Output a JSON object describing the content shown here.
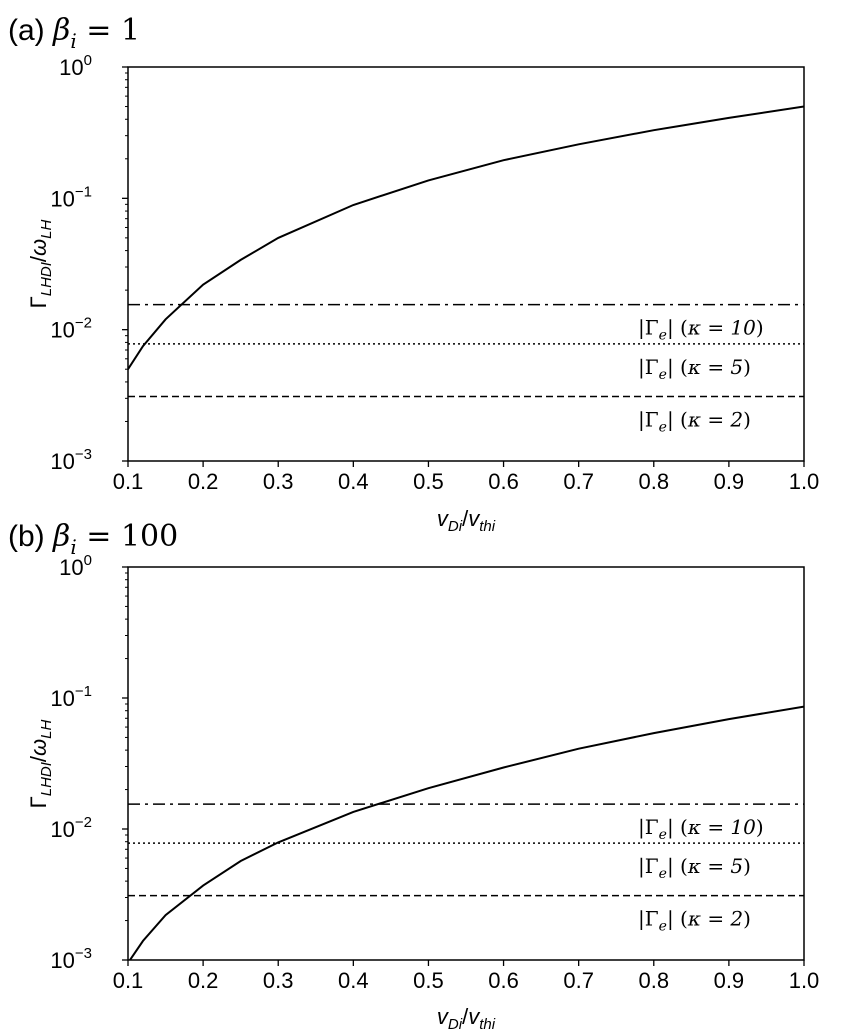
{
  "chart_data": [
    {
      "type": "line",
      "title": "(a) βi = 1",
      "title_parts": {
        "prefix": "(a) ",
        "symbol": "β",
        "sub": "i",
        "rest": " = 1"
      },
      "xlabel": {
        "base1": "v",
        "sub1": "Di",
        "slash": "/",
        "base2": "v",
        "sub2": "thi"
      },
      "ylabel": {
        "base": "Γ",
        "sub1": "LHDI",
        "slash": "/",
        "base2": "ω",
        "sub2": "LH"
      },
      "xlim": [
        0.1,
        1.0
      ],
      "ylim": [
        0.001,
        1
      ],
      "yscale": "log",
      "grid": false,
      "xticks": [
        {
          "v": 0.1,
          "label": "0.1"
        },
        {
          "v": 0.2,
          "label": "0.2"
        },
        {
          "v": 0.3,
          "label": "0.3"
        },
        {
          "v": 0.4,
          "label": "0.4"
        },
        {
          "v": 0.5,
          "label": "0.5"
        },
        {
          "v": 0.6,
          "label": "0.6"
        },
        {
          "v": 0.7,
          "label": "0.7"
        },
        {
          "v": 0.8,
          "label": "0.8"
        },
        {
          "v": 0.9,
          "label": "0.9"
        },
        {
          "v": 1.0,
          "label": "1.0"
        }
      ],
      "yticks": [
        {
          "v": 0.001,
          "base": "10",
          "exp": "−3"
        },
        {
          "v": 0.01,
          "base": "10",
          "exp": "−2"
        },
        {
          "v": 0.1,
          "base": "10",
          "exp": "−1"
        },
        {
          "v": 1,
          "base": "10",
          "exp": "0"
        }
      ],
      "series": [
        {
          "style": "solid",
          "x": [
            0.1,
            0.12,
            0.15,
            0.2,
            0.25,
            0.3,
            0.4,
            0.5,
            0.6,
            0.7,
            0.8,
            0.9,
            1.0
          ],
          "y": [
            0.005,
            0.0075,
            0.012,
            0.022,
            0.034,
            0.05,
            0.089,
            0.137,
            0.195,
            0.258,
            0.33,
            0.41,
            0.5
          ]
        }
      ],
      "hlines": [
        {
          "y": 0.0155,
          "style": "dashdot",
          "label": "|Γe| (κ = 10)",
          "parts": {
            "g": "Γ",
            "gsub": "e",
            "kappa": "κ = 10"
          }
        },
        {
          "y": 0.0078,
          "style": "dotted",
          "label": "|Γe| (κ = 5)",
          "parts": {
            "g": "Γ",
            "gsub": "e",
            "kappa": "κ = 5"
          }
        },
        {
          "y": 0.0031,
          "style": "dashed",
          "label": "|Γe| (κ = 2)",
          "parts": {
            "g": "Γ",
            "gsub": "e",
            "kappa": "κ = 2"
          }
        }
      ]
    },
    {
      "type": "line",
      "title": "(b) βi = 100",
      "title_parts": {
        "prefix": "(b) ",
        "symbol": "β",
        "sub": "i",
        "rest": " = 100"
      },
      "xlabel": {
        "base1": "v",
        "sub1": "Di",
        "slash": "/",
        "base2": "v",
        "sub2": "thi"
      },
      "ylabel": {
        "base": "Γ",
        "sub1": "LHDI",
        "slash": "/",
        "base2": "ω",
        "sub2": "LH"
      },
      "xlim": [
        0.1,
        1.0
      ],
      "ylim": [
        0.001,
        1
      ],
      "yscale": "log",
      "grid": false,
      "xticks": [
        {
          "v": 0.1,
          "label": "0.1"
        },
        {
          "v": 0.2,
          "label": "0.2"
        },
        {
          "v": 0.3,
          "label": "0.3"
        },
        {
          "v": 0.4,
          "label": "0.4"
        },
        {
          "v": 0.5,
          "label": "0.5"
        },
        {
          "v": 0.6,
          "label": "0.6"
        },
        {
          "v": 0.7,
          "label": "0.7"
        },
        {
          "v": 0.8,
          "label": "0.8"
        },
        {
          "v": 0.9,
          "label": "0.9"
        },
        {
          "v": 1.0,
          "label": "1.0"
        }
      ],
      "yticks": [
        {
          "v": 0.001,
          "base": "10",
          "exp": "−3"
        },
        {
          "v": 0.01,
          "base": "10",
          "exp": "−2"
        },
        {
          "v": 0.1,
          "base": "10",
          "exp": "−1"
        },
        {
          "v": 1,
          "base": "10",
          "exp": "0"
        }
      ],
      "series": [
        {
          "style": "solid",
          "x": [
            0.1,
            0.12,
            0.15,
            0.2,
            0.25,
            0.3,
            0.4,
            0.5,
            0.6,
            0.7,
            0.8,
            0.9,
            1.0
          ],
          "y": [
            0.00095,
            0.0014,
            0.0022,
            0.0037,
            0.0057,
            0.0079,
            0.0135,
            0.0205,
            0.0295,
            0.041,
            0.054,
            0.069,
            0.086
          ]
        }
      ],
      "hlines": [
        {
          "y": 0.0155,
          "style": "dashdot",
          "label": "|Γe| (κ = 10)",
          "parts": {
            "g": "Γ",
            "gsub": "e",
            "kappa": "κ = 10"
          }
        },
        {
          "y": 0.0078,
          "style": "dotted",
          "label": "|Γe| (κ = 5)",
          "parts": {
            "g": "Γ",
            "gsub": "e",
            "kappa": "κ = 5"
          }
        },
        {
          "y": 0.0031,
          "style": "dashed",
          "label": "|Γe| (κ = 2)",
          "parts": {
            "g": "Γ",
            "gsub": "e",
            "kappa": "κ = 2"
          }
        }
      ]
    }
  ]
}
